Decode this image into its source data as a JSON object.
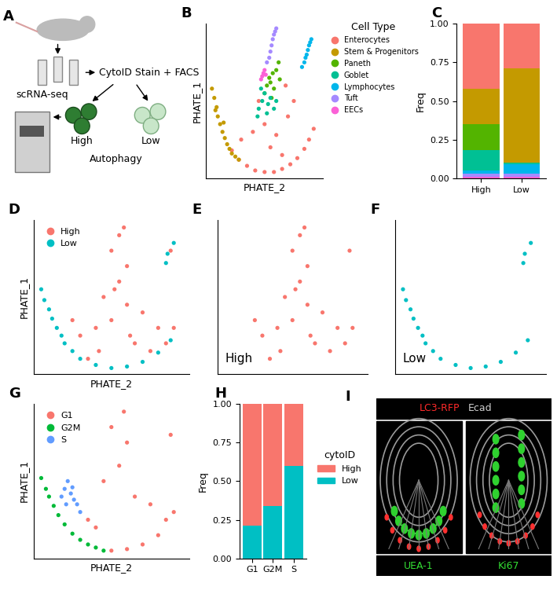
{
  "diagram": {
    "panel": "A",
    "stain": "CytoID Stain + FACS",
    "high": "High",
    "low": "Low",
    "autophagy": "Autophagy",
    "seq": "scRNA-seq"
  },
  "chart_data": [
    {
      "panel": "B",
      "type": "scatter",
      "marker": "o",
      "xlabel": "PHATE_2",
      "ylabel": "PHATE_1",
      "tick_labels": false,
      "xlim": [
        0,
        100
      ],
      "ylim": [
        0,
        100
      ],
      "legend": "upper left",
      "legend_title": "Cell Type",
      "series": [
        {
          "name": "Enterocytes",
          "color": "#F8766D",
          "x": [
            22,
            28,
            35,
            42,
            50,
            58,
            65,
            72,
            78,
            84,
            88,
            92,
            40,
            50,
            60,
            70,
            45,
            55,
            65,
            30,
            75,
            68
          ],
          "y": [
            18,
            12,
            8,
            5,
            4,
            4,
            6,
            9,
            13,
            19,
            25,
            32,
            30,
            35,
            28,
            40,
            50,
            20,
            15,
            25,
            50,
            60
          ]
        },
        {
          "name": "Stem & Progenitors",
          "color": "#C49A00",
          "x": [
            5,
            7,
            9,
            10,
            12,
            14,
            16,
            18,
            20,
            22,
            25,
            28,
            8,
            15
          ],
          "y": [
            58,
            52,
            46,
            40,
            35,
            30,
            26,
            22,
            19,
            16,
            14,
            12,
            44,
            36
          ]
        },
        {
          "name": "Paneth",
          "color": "#53B400",
          "x": [
            50,
            52,
            55,
            57,
            60,
            62,
            58,
            54,
            63,
            56
          ],
          "y": [
            55,
            60,
            62,
            68,
            70,
            75,
            58,
            65,
            64,
            52
          ]
        },
        {
          "name": "Goblet",
          "color": "#00C094",
          "x": [
            45,
            48,
            50,
            53,
            55,
            47,
            52,
            58,
            44,
            60
          ],
          "y": [
            45,
            50,
            55,
            48,
            52,
            58,
            42,
            45,
            40,
            50
          ]
        },
        {
          "name": "Lymphocytes",
          "color": "#00B6EB",
          "x": [
            82,
            84,
            85,
            86,
            87,
            88,
            89,
            90
          ],
          "y": [
            72,
            75,
            78,
            80,
            83,
            86,
            88,
            90
          ]
        },
        {
          "name": "Tuft",
          "color": "#A58AFF",
          "x": [
            52,
            54,
            55,
            56,
            57,
            58,
            59,
            60
          ],
          "y": [
            75,
            78,
            82,
            86,
            90,
            93,
            95,
            97
          ]
        },
        {
          "name": "EECs",
          "color": "#FB61D7",
          "x": [
            48,
            49,
            50,
            51,
            47
          ],
          "y": [
            66,
            68,
            70,
            67,
            64
          ]
        }
      ]
    },
    {
      "panel": "C",
      "type": "bar",
      "stacked": true,
      "ylabel": "Freq",
      "categories": [
        "High",
        "Low"
      ],
      "ylim": [
        0,
        1
      ],
      "yticks": [
        {
          "value": 0,
          "label": "0.00"
        },
        {
          "value": 0.25,
          "label": "0.25"
        },
        {
          "value": 0.5,
          "label": "0.50"
        },
        {
          "value": 0.75,
          "label": "0.75"
        },
        {
          "value": 1,
          "label": "1.00"
        }
      ],
      "series": [
        {
          "name": "EECs",
          "color": "#FB61D7",
          "values": [
            0.01,
            0.01
          ]
        },
        {
          "name": "Tuft",
          "color": "#A58AFF",
          "values": [
            0.02,
            0.02
          ]
        },
        {
          "name": "Lymphocytes",
          "color": "#00B6EB",
          "values": [
            0.02,
            0.06
          ]
        },
        {
          "name": "Goblet",
          "color": "#00C094",
          "values": [
            0.13,
            0.01
          ]
        },
        {
          "name": "Paneth",
          "color": "#53B400",
          "values": [
            0.17,
            0.0
          ]
        },
        {
          "name": "Stem & Progenitors",
          "color": "#C49A00",
          "values": [
            0.23,
            0.61
          ]
        },
        {
          "name": "Enterocytes",
          "color": "#F8766D",
          "values": [
            0.42,
            0.29
          ]
        }
      ]
    },
    {
      "panel": "D",
      "type": "scatter",
      "marker": "o",
      "xlabel": "PHATE_2",
      "ylabel": "PHATE_1",
      "tick_labels": false,
      "xlim": [
        0,
        100
      ],
      "ylim": [
        0,
        100
      ],
      "legend": "upper left",
      "series": [
        {
          "name": "High",
          "color": "#F8766D",
          "x": [
            30,
            40,
            50,
            60,
            70,
            80,
            90,
            45,
            55,
            60,
            50,
            55,
            58,
            65,
            75,
            85,
            35,
            25,
            88,
            52,
            62,
            42
          ],
          "y": [
            25,
            30,
            35,
            45,
            40,
            30,
            30,
            50,
            60,
            70,
            80,
            90,
            95,
            20,
            15,
            20,
            10,
            35,
            80,
            55,
            25,
            15
          ]
        },
        {
          "name": "Low",
          "color": "#00BFC4",
          "x": [
            5,
            7,
            10,
            12,
            15,
            18,
            20,
            25,
            30,
            40,
            50,
            60,
            70,
            80,
            88,
            86,
            90,
            85
          ],
          "y": [
            55,
            48,
            42,
            36,
            30,
            25,
            20,
            15,
            10,
            6,
            4,
            5,
            8,
            14,
            22,
            78,
            85,
            72
          ]
        }
      ]
    },
    {
      "panel": "E",
      "type": "scatter",
      "marker": "o",
      "tick_labels": false,
      "xlim": [
        0,
        100
      ],
      "ylim": [
        0,
        100
      ],
      "annotations": [
        "High"
      ],
      "series": [
        {
          "color": "#F8766D",
          "x": [
            30,
            40,
            50,
            60,
            70,
            80,
            90,
            45,
            55,
            60,
            50,
            55,
            58,
            65,
            75,
            85,
            35,
            25,
            88,
            52,
            62,
            42
          ],
          "y": [
            25,
            30,
            35,
            45,
            40,
            30,
            30,
            50,
            60,
            70,
            80,
            90,
            95,
            20,
            15,
            20,
            10,
            35,
            80,
            55,
            25,
            15
          ]
        }
      ]
    },
    {
      "panel": "F",
      "type": "scatter",
      "marker": "o",
      "tick_labels": false,
      "xlim": [
        0,
        100
      ],
      "ylim": [
        0,
        100
      ],
      "annotations": [
        "Low"
      ],
      "series": [
        {
          "color": "#00BFC4",
          "x": [
            5,
            7,
            10,
            12,
            15,
            18,
            20,
            25,
            30,
            40,
            50,
            60,
            70,
            80,
            88,
            86,
            90,
            85
          ],
          "y": [
            55,
            48,
            42,
            36,
            30,
            25,
            20,
            15,
            10,
            6,
            4,
            5,
            8,
            14,
            22,
            78,
            85,
            72
          ]
        }
      ]
    },
    {
      "panel": "G",
      "type": "scatter",
      "marker": "o",
      "xlabel": "PHATE_2",
      "ylabel": "PHATE_1",
      "tick_labels": false,
      "xlim": [
        0,
        100
      ],
      "ylim": [
        0,
        100
      ],
      "legend": "upper left",
      "series": [
        {
          "name": "G1",
          "color": "#F8766D",
          "x": [
            50,
            60,
            70,
            80,
            90,
            55,
            60,
            50,
            65,
            75,
            85,
            88,
            45,
            58,
            40,
            35
          ],
          "y": [
            5,
            6,
            9,
            15,
            30,
            60,
            75,
            85,
            40,
            35,
            25,
            80,
            50,
            95,
            20,
            25
          ]
        },
        {
          "name": "G2M",
          "color": "#00BA38",
          "x": [
            5,
            8,
            10,
            13,
            16,
            20,
            25,
            30,
            35,
            40,
            45
          ],
          "y": [
            52,
            45,
            40,
            34,
            28,
            22,
            16,
            12,
            9,
            7,
            5
          ]
        },
        {
          "name": "S",
          "color": "#619CFF",
          "x": [
            18,
            20,
            22,
            24,
            26,
            28,
            30,
            21,
            25
          ],
          "y": [
            40,
            45,
            50,
            42,
            38,
            35,
            30,
            35,
            46
          ]
        }
      ]
    },
    {
      "panel": "H",
      "type": "bar",
      "stacked": true,
      "ylabel": "Freq",
      "categories": [
        "G1",
        "G2M",
        "S"
      ],
      "ylim": [
        0,
        1
      ],
      "yticks": [
        {
          "value": 0,
          "label": "0.00"
        },
        {
          "value": 0.25,
          "label": "0.25"
        },
        {
          "value": 0.5,
          "label": "0.50"
        },
        {
          "value": 0.75,
          "label": "0.75"
        },
        {
          "value": 1,
          "label": "1.00"
        }
      ],
      "legend": "upper left",
      "legend_title": "cytoID",
      "series": [
        {
          "name": "Low",
          "color": "#00BFC4",
          "values": [
            0.21,
            0.34,
            0.6
          ]
        },
        {
          "name": "High",
          "color": "#F8766D",
          "values": [
            0.79,
            0.66,
            0.4
          ]
        }
      ]
    }
  ],
  "image": {
    "panel": "I",
    "header": [
      {
        "text": "LC3-RFP",
        "color": "#ff2a2a"
      },
      {
        "text": "Ecad",
        "color": "#cfcfcf"
      }
    ],
    "footer": [
      {
        "text": "UEA-1",
        "color": "#33dd33"
      },
      {
        "text": "Ki67",
        "color": "#33dd33"
      }
    ]
  }
}
